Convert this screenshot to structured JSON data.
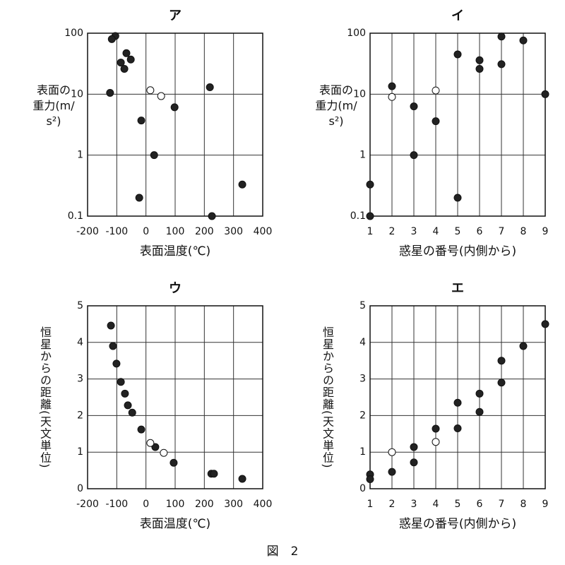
{
  "chart_data": [
    {
      "type": "scatter",
      "title": "ア",
      "xlabel": "表面温度(℃)",
      "ylabel": "表面の重力(m/s²)",
      "xlim": [
        -200,
        400
      ],
      "xticks": [
        -200,
        -100,
        0,
        100,
        200,
        300,
        400
      ],
      "ylim": [
        0.1,
        100
      ],
      "yticks": [
        0.1,
        1,
        10,
        100
      ],
      "yscale": "log",
      "grid": true,
      "series": [
        {
          "color": "#222222",
          "x": [
            -105,
            -117,
            -67,
            -52,
            -86,
            -74,
            -123,
            -16,
            98,
            28,
            -23,
            219,
            226,
            330
          ],
          "values": [
            90,
            80,
            47,
            37,
            33,
            26,
            10.5,
            3.7,
            6.1,
            1,
            0.2,
            13,
            0.1,
            0.33
          ]
        },
        {
          "color": "#ffffff",
          "x": [
            15,
            52
          ],
          "values": [
            11.6,
            9.3
          ]
        }
      ]
    },
    {
      "type": "scatter",
      "title": "イ",
      "xlabel": "惑星の番号(内側から)",
      "ylabel": "表面の重力(m/s²)",
      "xlim": [
        1,
        9
      ],
      "xticks": [
        1,
        2,
        3,
        4,
        5,
        6,
        7,
        8,
        9
      ],
      "ylim": [
        0.1,
        100
      ],
      "yticks": [
        0.1,
        1,
        10,
        100
      ],
      "yscale": "log",
      "grid": true,
      "series": [
        {
          "color": "#222222",
          "x": [
            1,
            1,
            2,
            3,
            3,
            4,
            5,
            5,
            6,
            6,
            7,
            7,
            8,
            9
          ],
          "values": [
            0.33,
            0.1,
            13.5,
            6.3,
            1,
            3.6,
            45,
            0.2,
            36,
            26,
            88,
            31,
            76,
            10
          ]
        },
        {
          "color": "#ffffff",
          "x": [
            2,
            4
          ],
          "values": [
            9,
            11.5
          ]
        }
      ]
    },
    {
      "type": "scatter",
      "title": "ウ",
      "xlabel": "表面温度(℃)",
      "ylabel": "恒星からの距離(天文単位)",
      "xlim": [
        -200,
        400
      ],
      "xticks": [
        -200,
        -100,
        0,
        100,
        200,
        300,
        400
      ],
      "ylim": [
        0,
        5
      ],
      "yticks": [
        0,
        1,
        2,
        3,
        4,
        5
      ],
      "grid": true,
      "series": [
        {
          "color": "#222222",
          "x": [
            -120,
            -113,
            -101,
            -86,
            -72,
            -62,
            -47,
            -16,
            32,
            95,
            224,
            233,
            330
          ],
          "values": [
            4.46,
            3.9,
            3.42,
            2.92,
            2.6,
            2.28,
            2.08,
            1.62,
            1.14,
            0.71,
            0.41,
            0.41,
            0.27
          ]
        },
        {
          "color": "#ffffff",
          "x": [
            15,
            61
          ],
          "values": [
            1.25,
            0.98
          ]
        }
      ]
    },
    {
      "type": "scatter",
      "title": "エ",
      "xlabel": "惑星の番号(内側から)",
      "ylabel": "恒星からの距離(天文単位)",
      "xlim": [
        1,
        9
      ],
      "xticks": [
        1,
        2,
        3,
        4,
        5,
        6,
        7,
        8,
        9
      ],
      "ylim": [
        0,
        5
      ],
      "yticks": [
        0,
        1,
        2,
        3,
        4,
        5
      ],
      "grid": true,
      "series": [
        {
          "color": "#222222",
          "x": [
            1,
            1,
            2,
            3,
            3,
            4,
            5,
            5,
            6,
            6,
            7,
            7,
            8,
            9
          ],
          "values": [
            0.39,
            0.26,
            0.46,
            1.14,
            0.72,
            1.64,
            2.35,
            1.65,
            2.6,
            2.1,
            3.5,
            2.9,
            3.9,
            4.5
          ]
        },
        {
          "color": "#ffffff",
          "x": [
            2,
            4
          ],
          "values": [
            1.0,
            1.28
          ]
        }
      ]
    }
  ],
  "caption": "図　2"
}
